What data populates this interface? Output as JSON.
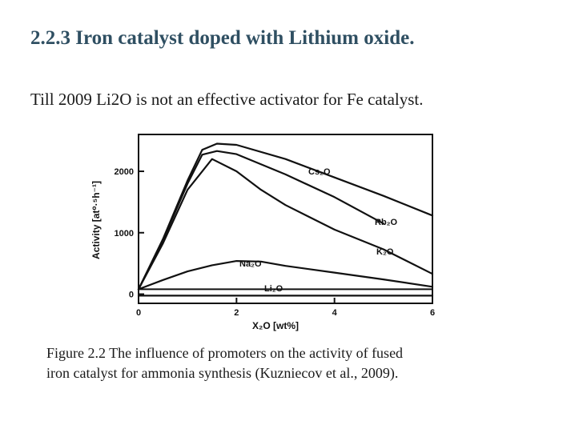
{
  "slide": {
    "title": "2.2.3 Iron catalyst doped with Lithium oxide.",
    "body": "Till 2009 Li2O is not an effective activator for Fe catalyst.",
    "caption_line1": "Figure 2.2 The influence of promoters on the activity of fused",
    "caption_line2": "iron catalyst for ammonia synthesis (Kuzniecov et al., 2009)."
  },
  "chart_data": {
    "type": "line",
    "xlabel": "X₂O [wt%]",
    "ylabel": "Activity [at⁰·⁵h⁻¹]",
    "xlim": [
      0,
      6
    ],
    "ylim": [
      -150,
      2600
    ],
    "x_ticks": [
      "0",
      "2",
      "4",
      "6"
    ],
    "y_ticks": [
      "0",
      "1000",
      "2000"
    ],
    "grid": false,
    "series": [
      {
        "name": "Cs₂O",
        "x": [
          0,
          0.5,
          1.0,
          1.3,
          1.6,
          2.0,
          3.0,
          4.0,
          5.0,
          6.0
        ],
        "values": [
          80,
          900,
          1850,
          2350,
          2450,
          2430,
          2200,
          1900,
          1600,
          1280
        ]
      },
      {
        "name": "Rb₂O",
        "x": [
          0,
          0.5,
          1.0,
          1.3,
          1.6,
          2.0,
          3.0,
          4.0,
          5.0
        ],
        "values": [
          80,
          880,
          1800,
          2270,
          2330,
          2280,
          1950,
          1580,
          1150
        ]
      },
      {
        "name": "K₂O",
        "x": [
          0,
          0.5,
          1.0,
          1.5,
          2.0,
          2.5,
          3.0,
          4.0,
          5.0,
          6.0
        ],
        "values": [
          80,
          830,
          1700,
          2200,
          2000,
          1700,
          1450,
          1050,
          730,
          330
        ]
      },
      {
        "name": "Na₂O",
        "x": [
          0,
          0.5,
          1.0,
          1.5,
          2.0,
          2.5,
          3.0,
          4.0,
          5.0,
          6.0
        ],
        "values": [
          80,
          230,
          370,
          470,
          540,
          530,
          460,
          350,
          240,
          120
        ]
      },
      {
        "name": "Li₂O",
        "x": [
          0,
          1,
          2,
          3,
          4,
          5,
          6
        ],
        "values": [
          -25,
          -25,
          -25,
          -25,
          -25,
          -25,
          -25
        ]
      }
    ],
    "baseline": {
      "x": [
        0,
        6
      ],
      "values": [
        80,
        80
      ]
    }
  }
}
